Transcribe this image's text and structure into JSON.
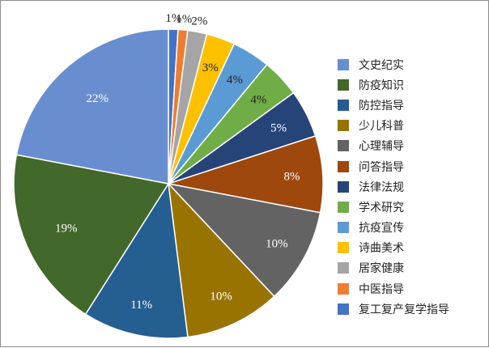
{
  "chart_data": {
    "type": "pie",
    "title": "",
    "legend_position": "right",
    "slices": [
      {
        "label": "复工复产复学指导",
        "value": 1,
        "pct_label": "1%",
        "color": "#4472c4"
      },
      {
        "label": "中医指导",
        "value": 1,
        "pct_label": "1%",
        "color": "#ed7d31"
      },
      {
        "label": "居家健康",
        "value": 2,
        "pct_label": "2%",
        "color": "#a5a5a5"
      },
      {
        "label": "诗曲美术",
        "value": 3,
        "pct_label": "3%",
        "color": "#ffc000"
      },
      {
        "label": "抗疫宣传",
        "value": 4,
        "pct_label": "4%",
        "color": "#5b9bd5"
      },
      {
        "label": "学术研究",
        "value": 4,
        "pct_label": "4%",
        "color": "#70ad47"
      },
      {
        "label": "法律法规",
        "value": 5,
        "pct_label": "5%",
        "color": "#264478"
      },
      {
        "label": "问答指导",
        "value": 8,
        "pct_label": "8%",
        "color": "#9e480e"
      },
      {
        "label": "心理辅导",
        "value": 10,
        "pct_label": "10%",
        "color": "#636363"
      },
      {
        "label": "少儿科普",
        "value": 10,
        "pct_label": "10%",
        "color": "#997300"
      },
      {
        "label": "防控指导",
        "value": 11,
        "pct_label": "11%",
        "color": "#255e91"
      },
      {
        "label": "防疫知识",
        "value": 19,
        "pct_label": "19%",
        "color": "#43682b"
      },
      {
        "label": "文史纪实",
        "value": 22,
        "pct_label": "22%",
        "color": "#698ed0"
      }
    ],
    "legend_order": [
      "文史纪实",
      "防疫知识",
      "防控指导",
      "少儿科普",
      "心理辅导",
      "问答指导",
      "法律法规",
      "学术研究",
      "抗疫宣传",
      "诗曲美术",
      "居家健康",
      "中医指导",
      "复工复产复学指导"
    ]
  }
}
